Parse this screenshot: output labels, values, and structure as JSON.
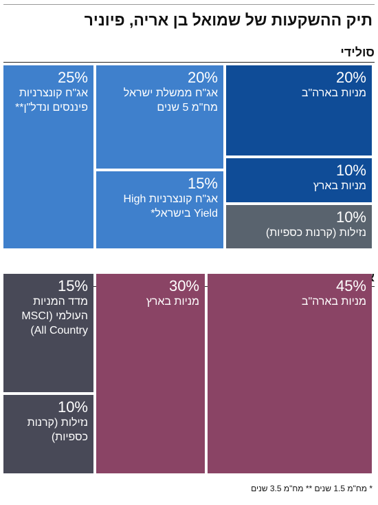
{
  "title": "תיק ההשקעות של שמואל בן אריה, פיוניר",
  "chart_data": [
    {
      "type": "treemap",
      "title": "סולידי",
      "categories": [
        "מניות בארה\"ב",
        "מניות בארץ",
        "נזילות (קרנות כספיות)",
        "אג\"ח ממשלת ישראל מח\"מ 5 שנים",
        "אג\"ח קונצרניות High Yield בישראל*",
        "אג\"ח קונצרניות פיננסים ונדל\"ן**"
      ],
      "values": [
        20,
        10,
        10,
        20,
        15,
        25
      ],
      "value_labels": [
        "20%",
        "10%",
        "10%",
        "20%",
        "15%",
        "25%"
      ],
      "colors": [
        "#0f4c97",
        "#0f4c97",
        "#59636e",
        "#3f80cc",
        "#3f80cc",
        "#3f80cc"
      ]
    },
    {
      "type": "treemap",
      "title": "אגרסיבי",
      "categories": [
        "מניות בארה\"ב",
        "מניות בארץ",
        "מדד המניות העולמי (MSCI All Country)",
        "נזילות (קרנות כספיות)"
      ],
      "values": [
        45,
        30,
        15,
        10
      ],
      "value_labels": [
        "45%",
        "30%",
        "15%",
        "10%"
      ],
      "colors": [
        "#8a4465",
        "#8a4465",
        "#484957",
        "#484957"
      ]
    }
  ],
  "footnote": "* מח\"מ 1.5 שנים ** מח\"מ 3.5 שנים"
}
